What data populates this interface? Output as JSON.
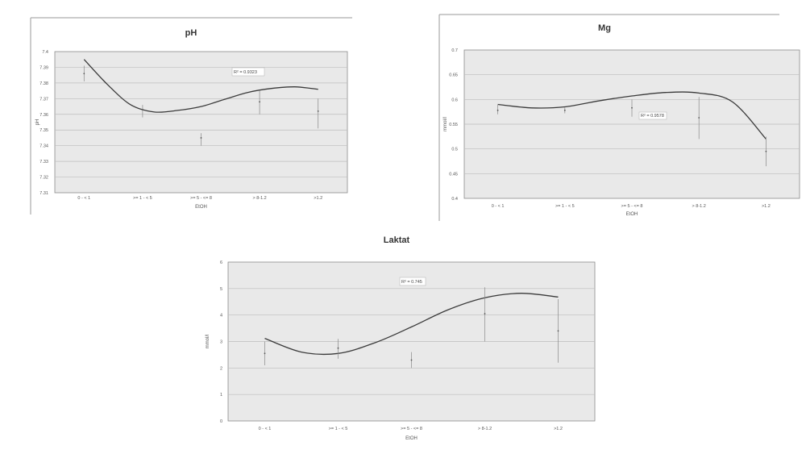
{
  "chart_data": [
    {
      "id": "ph",
      "type": "line",
      "title": "pH",
      "xlabel": "EtOH",
      "ylabel": "pH",
      "categories": [
        "0 - < 1",
        ">= 1 - < 5",
        ">= 5 - <= 8",
        "> 8-1.2",
        ">1.2"
      ],
      "ylim": [
        7.31,
        7.4
      ],
      "yticks": [
        7.31,
        7.32,
        7.33,
        7.34,
        7.35,
        7.36,
        7.37,
        7.38,
        7.39,
        7.4
      ],
      "ytick_labels": [
        "7.31",
        "7.32",
        "7.33",
        "7.34",
        "7.35",
        "7.36",
        "7.37",
        "7.38",
        "7.39",
        "7.4"
      ],
      "grid": true,
      "series": [
        {
          "values": [
            7.386,
            7.363,
            7.345,
            7.368,
            7.362
          ],
          "err_low": [
            7.381,
            7.358,
            7.34,
            7.36,
            7.351
          ],
          "err_high": [
            7.391,
            7.366,
            7.348,
            7.375,
            7.37
          ]
        }
      ],
      "trendline": {
        "type": "polynomial",
        "r2_label": "R² = 0.9323",
        "points": [
          [
            0,
            7.395
          ],
          [
            0.4,
            7.379
          ],
          [
            0.8,
            7.366
          ],
          [
            1.2,
            7.3615
          ],
          [
            1.6,
            7.3625
          ],
          [
            2,
            7.365
          ],
          [
            2.4,
            7.3695
          ],
          [
            2.8,
            7.374
          ],
          [
            3.2,
            7.3765
          ],
          [
            3.6,
            7.3775
          ],
          [
            4,
            7.376
          ]
        ]
      }
    },
    {
      "id": "mg",
      "type": "line",
      "title": "Mg",
      "xlabel": "EtOH",
      "ylabel": "mmol/l",
      "categories": [
        "0 - < 1",
        ">= 1 - < 5",
        ">= 5 - <= 8",
        "> 8-1.2",
        ">1.2"
      ],
      "ylim": [
        0.4,
        0.7
      ],
      "yticks": [
        0.4,
        0.45,
        0.5,
        0.55,
        0.6,
        0.65,
        0.7
      ],
      "ytick_labels": [
        "0.4",
        "0.45",
        "0.5",
        "0.55",
        "0.6",
        "0.65",
        "0.7"
      ],
      "grid": true,
      "series": [
        {
          "values": [
            0.578,
            0.578,
            0.583,
            0.563,
            0.495
          ],
          "err_low": [
            0.57,
            0.572,
            0.565,
            0.52,
            0.465
          ],
          "err_high": [
            0.59,
            0.584,
            0.6,
            0.605,
            0.525
          ]
        }
      ],
      "trendline": {
        "type": "polynomial",
        "r2_label": "R² = 0.9578",
        "points": [
          [
            0,
            0.59
          ],
          [
            0.5,
            0.583
          ],
          [
            1,
            0.585
          ],
          [
            1.5,
            0.597
          ],
          [
            2,
            0.607
          ],
          [
            2.5,
            0.614
          ],
          [
            3,
            0.613
          ],
          [
            3.5,
            0.595
          ],
          [
            4,
            0.52
          ]
        ]
      }
    },
    {
      "id": "laktat",
      "type": "line",
      "title": "Laktat",
      "xlabel": "EtOH",
      "ylabel": "mmol/l",
      "categories": [
        "0 - < 1",
        ">= 1 - < 5",
        ">= 5 - <= 8",
        "> 8-1.2",
        ">1.2"
      ],
      "ylim": [
        0,
        6
      ],
      "yticks": [
        0,
        1,
        2,
        3,
        4,
        5,
        6
      ],
      "ytick_labels": [
        "0",
        "1",
        "2",
        "3",
        "4",
        "5",
        "6"
      ],
      "grid": true,
      "series": [
        {
          "values": [
            2.55,
            2.75,
            2.3,
            4.05,
            3.4
          ],
          "err_low": [
            2.1,
            2.35,
            2.0,
            3.0,
            2.2
          ],
          "err_high": [
            3.0,
            3.1,
            2.6,
            5.05,
            4.6
          ]
        }
      ],
      "trendline": {
        "type": "polynomial",
        "r2_label": "R² = 0.745",
        "points": [
          [
            0,
            3.12
          ],
          [
            0.5,
            2.6
          ],
          [
            1,
            2.55
          ],
          [
            1.5,
            2.95
          ],
          [
            2,
            3.55
          ],
          [
            2.5,
            4.2
          ],
          [
            3,
            4.65
          ],
          [
            3.5,
            4.82
          ],
          [
            4,
            4.68
          ]
        ]
      }
    }
  ]
}
